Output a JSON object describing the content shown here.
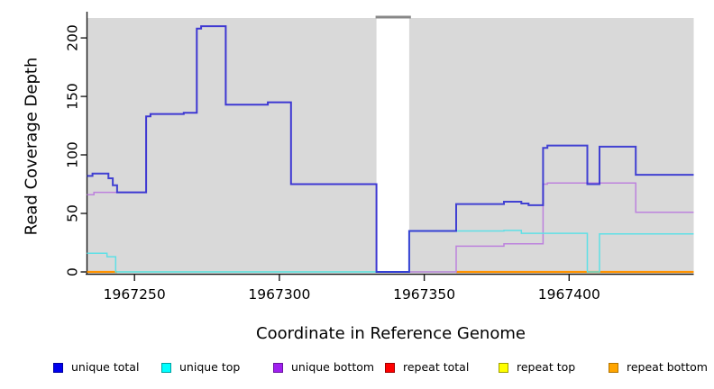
{
  "chart_data": {
    "type": "line",
    "title": "",
    "xlabel": "Coordinate in Reference Genome",
    "ylabel": "Read Coverage Depth",
    "x_range": [
      1967233.6,
      1967443.0
    ],
    "y_range": [
      0,
      217
    ],
    "x_ticks": [
      1967250,
      1967300,
      1967350,
      1967400
    ],
    "y_ticks": [
      0,
      50,
      100,
      150,
      200
    ],
    "grid": false,
    "legend_position": "bottom",
    "plot_background": "#ffffff",
    "shaded_region_color": "#d9d9d9",
    "background_regions": [
      {
        "name": "shaded-region-left",
        "x0": 1967233.6,
        "x1": 1967333.5
      },
      {
        "name": "shaded-region-right",
        "x0": 1967344.8,
        "x1": 1967443.0
      }
    ],
    "gap_top_bar": {
      "x0": 1967333.2,
      "x1": 1967345.4,
      "color": "#878787"
    },
    "series": [
      {
        "name": "baseline-zero",
        "in_legend": false,
        "color": "#97d497",
        "width": 1.5,
        "points": [
          [
            1967233.6,
            0
          ],
          [
            1967443,
            0
          ]
        ]
      },
      {
        "name": "repeat total",
        "in_legend": true,
        "color": "#ff0000",
        "width": 1.5,
        "points": []
      },
      {
        "name": "repeat top",
        "in_legend": true,
        "color": "#ffff00",
        "width": 1.5,
        "points": []
      },
      {
        "name": "repeat bottom",
        "in_legend": true,
        "color": "#ff9300",
        "width": 2.2,
        "points": [
          [
            1967233.6,
            0
          ],
          [
            1967244,
            0
          ],
          null,
          [
            1967361,
            0
          ],
          [
            1967443,
            0
          ]
        ]
      },
      {
        "name": "unique bottom",
        "in_legend": true,
        "color": "#bd82dd",
        "width": 1.5,
        "points": [
          [
            1967233.6,
            66
          ],
          [
            1967236,
            68
          ],
          [
            1967254,
            133
          ],
          [
            1967255.5,
            135
          ],
          [
            1967267,
            136
          ],
          [
            1967271.5,
            208
          ],
          [
            1967273,
            210
          ],
          [
            1967281.5,
            143
          ],
          [
            1967296,
            145
          ],
          [
            1967304,
            75
          ],
          [
            1967333.5,
            0
          ],
          [
            1967361,
            22
          ],
          [
            1967377.5,
            24
          ],
          [
            1967391,
            75
          ],
          [
            1967392.5,
            76
          ],
          [
            1967423,
            51
          ],
          [
            1967443,
            51
          ]
        ]
      },
      {
        "name": "unique top",
        "in_legend": true,
        "color": "#5fe0e6",
        "width": 1.5,
        "points": [
          [
            1967233.6,
            16
          ],
          [
            1967240.5,
            13
          ],
          [
            1967243.5,
            0
          ],
          [
            1967344.8,
            35
          ],
          [
            1967377.5,
            35.5
          ],
          [
            1967383.5,
            33
          ],
          [
            1967406.3,
            0
          ],
          [
            1967410.5,
            32.5
          ],
          [
            1967443,
            32.5
          ]
        ]
      },
      {
        "name": "unique total",
        "in_legend": true,
        "color": "#2b2bd0",
        "width": 2,
        "points": [
          [
            1967233.6,
            82
          ],
          [
            1967235.5,
            84
          ],
          [
            1967241,
            80
          ],
          [
            1967242.5,
            74
          ],
          [
            1967244,
            68
          ],
          [
            1967254,
            133
          ],
          [
            1967255.5,
            135
          ],
          [
            1967267,
            136
          ],
          [
            1967271.5,
            208
          ],
          [
            1967273,
            210
          ],
          [
            1967281.5,
            143
          ],
          [
            1967296,
            145
          ],
          [
            1967304,
            75
          ],
          [
            1967333.5,
            0
          ],
          [
            1967344.8,
            35
          ],
          [
            1967361,
            58
          ],
          [
            1967377.5,
            60
          ],
          [
            1967383.5,
            58.5
          ],
          [
            1967386,
            57
          ],
          [
            1967391,
            106
          ],
          [
            1967392.5,
            108
          ],
          [
            1967406.3,
            75
          ],
          [
            1967410.5,
            107
          ],
          [
            1967423,
            83
          ],
          [
            1967443,
            83
          ]
        ]
      }
    ]
  },
  "legend": {
    "items": [
      {
        "label": "unique total",
        "fill": "#0000ee",
        "border": "#0000a0"
      },
      {
        "label": "unique top",
        "fill": "#00ffff",
        "border": "#00a0a0"
      },
      {
        "label": "unique bottom",
        "fill": "#a020f0",
        "border": "#6a14a0"
      },
      {
        "label": "repeat total",
        "fill": "#ff0000",
        "border": "#a00000"
      },
      {
        "label": "repeat top",
        "fill": "#ffff00",
        "border": "#a0a000"
      },
      {
        "label": "repeat bottom",
        "fill": "#ffa500",
        "border": "#b37400"
      }
    ]
  }
}
